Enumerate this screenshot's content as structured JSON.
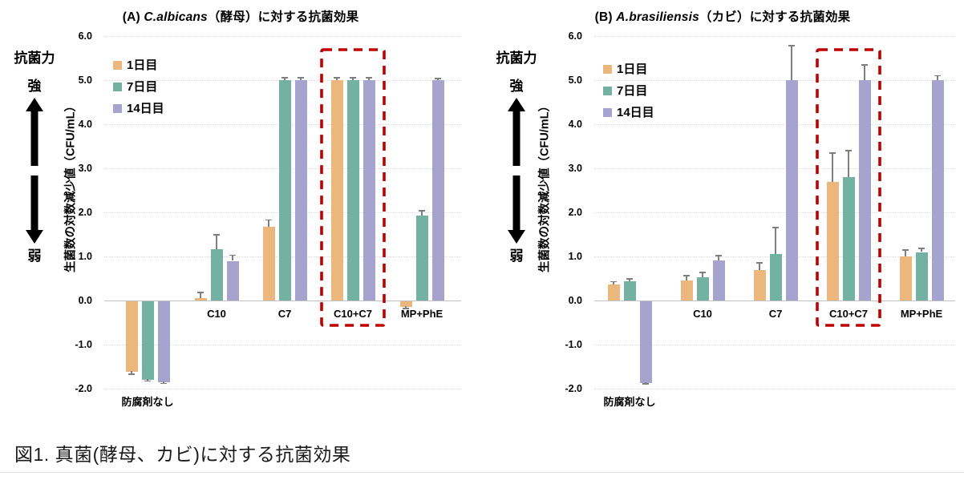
{
  "figure": {
    "caption": "図1. 真菌(酵母、カビ)に対する抗菌効果"
  },
  "side_annotation": {
    "title": "抗菌力",
    "strong": "強",
    "weak": "弱"
  },
  "legend": {
    "position": "top-left-inside",
    "items": [
      {
        "label": "1日目",
        "color": "#EBB77C"
      },
      {
        "label": "7日目",
        "color": "#73B1A3"
      },
      {
        "label": "14日目",
        "color": "#A7A3CF"
      }
    ]
  },
  "colors": {
    "day1_bar": "#EBB77C",
    "day7_bar": "#73B1A3",
    "day14_bar": "#A7A3CF",
    "error_bar": "#7F7F7F",
    "gridline": "#D9D9D9",
    "axis_line": "#C0C0C0",
    "highlight_box": "#C00000"
  },
  "chart_data": [
    {
      "type": "bar",
      "title": {
        "prefix": "(A) ",
        "species": "C.albicans",
        "suffix": "（酵母）に対する抗菌効果"
      },
      "ylabel": "生菌数の対数減少値（CFU/mL）",
      "ylim": [
        -2.0,
        6.0
      ],
      "grid": true,
      "yticks": [
        "6.0",
        "5.0",
        "4.0",
        "3.0",
        "2.0",
        "1.0",
        "0.0",
        "-1.0",
        "-2.0"
      ],
      "categories": [
        "防腐剤なし",
        "C10",
        "C7",
        "C10+C7",
        "MP+PhE"
      ],
      "series": [
        {
          "name": "1日目",
          "color": "#EBB77C",
          "values": [
            -1.6,
            0.05,
            1.68,
            5.0,
            -0.13
          ],
          "errors": [
            0.07,
            0.13,
            0.15,
            0.05,
            0.05
          ]
        },
        {
          "name": "7日目",
          "color": "#73B1A3",
          "values": [
            -1.78,
            1.16,
            5.0,
            5.0,
            1.92
          ],
          "errors": [
            0.05,
            0.33,
            0.05,
            0.05,
            0.12
          ]
        },
        {
          "name": "14日目",
          "color": "#A7A3CF",
          "values": [
            -1.83,
            0.9,
            5.0,
            5.0,
            5.0
          ],
          "errors": [
            0.05,
            0.13,
            0.05,
            0.05,
            0.04
          ]
        }
      ],
      "highlight_category": "C10+C7"
    },
    {
      "type": "bar",
      "title": {
        "prefix": "(B) ",
        "species": "A.brasiliensis",
        "suffix": "（カビ）に対する抗菌効果"
      },
      "ylabel": "生菌数の対数減少値（CFU/mL）",
      "ylim": [
        -2.0,
        6.0
      ],
      "grid": true,
      "yticks": [
        "6.0",
        "5.0",
        "4.0",
        "3.0",
        "2.0",
        "1.0",
        "0.0",
        "-1.0",
        "-2.0"
      ],
      "categories": [
        "防腐剤なし",
        "C10",
        "C7",
        "C10+C7",
        "MP+PhE"
      ],
      "series": [
        {
          "name": "1日目",
          "color": "#EBB77C",
          "values": [
            0.37,
            0.45,
            0.7,
            2.7,
            1.0
          ],
          "errors": [
            0.06,
            0.11,
            0.15,
            0.65,
            0.15
          ]
        },
        {
          "name": "7日目",
          "color": "#73B1A3",
          "values": [
            0.43,
            0.53,
            1.05,
            2.8,
            1.1
          ],
          "errors": [
            0.06,
            0.11,
            0.6,
            0.6,
            0.08
          ]
        },
        {
          "name": "14日目",
          "color": "#A7A3CF",
          "values": [
            -1.85,
            0.91,
            5.0,
            5.0,
            5.0
          ],
          "errors": [
            0.04,
            0.11,
            0.78,
            0.35,
            0.1
          ]
        }
      ],
      "highlight_category": "C10+C7"
    }
  ]
}
